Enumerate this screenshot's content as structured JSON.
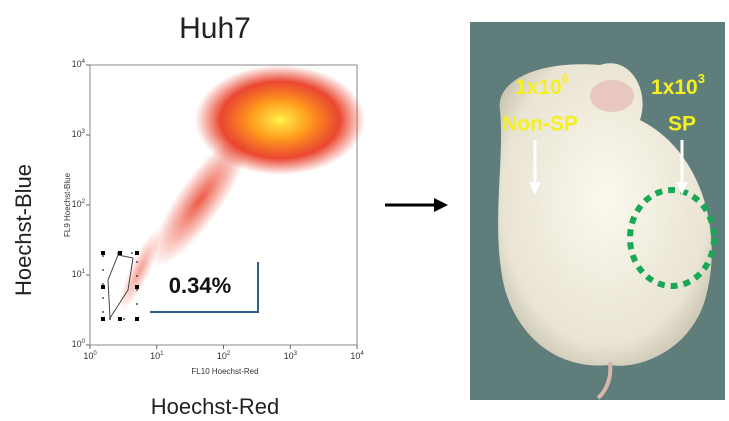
{
  "title": "Huh7",
  "plot": {
    "y_axis_title": "Hoechst-Blue",
    "x_axis_title": "Hoechst-Red",
    "y_channel_label": "FL9 Hoechst-Blue",
    "x_channel_label": "FL10 Hoechst-Red",
    "percentage": "0.34%",
    "x_ticks": [
      {
        "base": "10",
        "exp": "0"
      },
      {
        "base": "10",
        "exp": "1"
      },
      {
        "base": "10",
        "exp": "2"
      },
      {
        "base": "10",
        "exp": "3"
      },
      {
        "base": "10",
        "exp": "4"
      }
    ],
    "y_ticks": [
      {
        "base": "10",
        "exp": "0"
      },
      {
        "base": "10",
        "exp": "1"
      },
      {
        "base": "10",
        "exp": "2"
      },
      {
        "base": "10",
        "exp": "3"
      },
      {
        "base": "10",
        "exp": "4"
      }
    ]
  },
  "photo": {
    "labels": [
      {
        "count_base": "1x10",
        "count_exp": "6",
        "name": "Non-SP"
      },
      {
        "count_base": "1x10",
        "count_exp": "3",
        "name": "SP"
      }
    ]
  }
}
